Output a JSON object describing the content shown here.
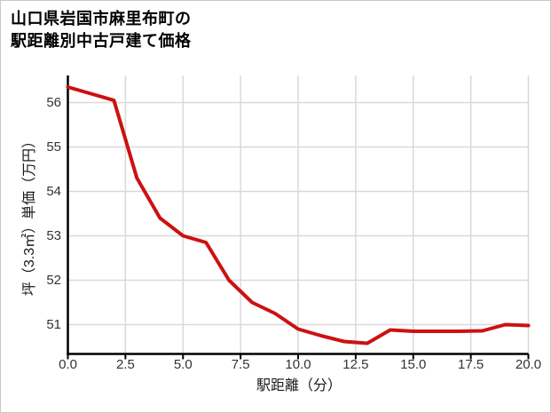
{
  "title": {
    "line1": "山口県岩国市麻里布町の",
    "line2": "駅距離別中古戸建て価格"
  },
  "chart_data": {
    "type": "line",
    "title": "山口県岩国市麻里布町の駅距離別中古戸建て価格",
    "xlabel": "駅距離（分）",
    "ylabel": "坪（3.3㎡）単価（万円）",
    "x": [
      0,
      1,
      2,
      3,
      4,
      5,
      6,
      7,
      8,
      9,
      10,
      11,
      12,
      13,
      14,
      15,
      16,
      17,
      18,
      19,
      20
    ],
    "values": [
      56.35,
      56.2,
      56.05,
      54.3,
      53.4,
      53.0,
      52.85,
      52.0,
      51.5,
      51.25,
      50.9,
      50.75,
      50.62,
      50.58,
      50.88,
      50.85,
      50.85,
      50.85,
      50.86,
      51.0,
      50.98
    ],
    "xlim": [
      0,
      20
    ],
    "ylim": [
      50.34,
      56.61
    ],
    "x_tick_values": [
      0,
      2.5,
      5,
      7.5,
      10,
      12.5,
      15,
      17.5,
      20
    ],
    "x_tick_labels": [
      "0.0",
      "2.5",
      "5.0",
      "7.5",
      "10.0",
      "12.5",
      "15.0",
      "17.5",
      "20.0"
    ],
    "y_tick_values": [
      51,
      52,
      53,
      54,
      55,
      56
    ],
    "y_tick_labels": [
      "51",
      "52",
      "53",
      "54",
      "55",
      "56"
    ],
    "grid": true,
    "legend_position": "none",
    "line_color": "#cc1111",
    "grid_color": "#d9d9d9",
    "axis_color": "#000000",
    "tick_label_color": "#333333"
  }
}
